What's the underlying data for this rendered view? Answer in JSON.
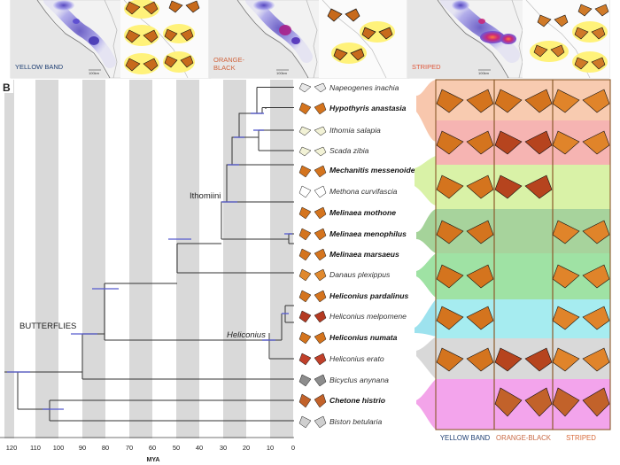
{
  "panel_top": {
    "maps": [
      {
        "label": "YELLOW BAND",
        "label_color": "#1f3f73",
        "scale": "100km"
      },
      {
        "label": "ORANGE-BLACK",
        "label_color": "#d0633c",
        "scale": "100km"
      },
      {
        "label": "STRIPED",
        "label_color": "#e0573a",
        "scale": "100km"
      }
    ]
  },
  "panel_b": {
    "letter": "B",
    "axis_ticks": [
      "120",
      "110",
      "100",
      "90",
      "80",
      "70",
      "60",
      "50",
      "40",
      "30",
      "20",
      "10",
      "0"
    ],
    "axis_title": "MYA",
    "clade_labels": {
      "butterflies": "BUTTERFLIES",
      "ithomiini": "Ithomiini",
      "heliconius": "Heliconius"
    },
    "species": [
      {
        "name": "Napeogenes inachia",
        "bold": false
      },
      {
        "name": "Hypothyris anastasia",
        "bold": true
      },
      {
        "name": "Ithomia salapia",
        "bold": false
      },
      {
        "name": "Scada zibia",
        "bold": false
      },
      {
        "name": "Mechanitis messenoides",
        "bold": true
      },
      {
        "name": "Methona curvifascia",
        "bold": false
      },
      {
        "name": "Melinaea mothone",
        "bold": true
      },
      {
        "name": "Melinaea menophilus",
        "bold": true
      },
      {
        "name": "Melinaea marsaeus",
        "bold": true
      },
      {
        "name": "Danaus plexippus",
        "bold": false
      },
      {
        "name": "Heliconius pardalinus",
        "bold": true
      },
      {
        "name": "Heliconius melpomene",
        "bold": false
      },
      {
        "name": "Heliconius numata",
        "bold": true
      },
      {
        "name": "Heliconius erato",
        "bold": false
      },
      {
        "name": "Bicyclus anynana",
        "bold": false
      },
      {
        "name": "Chetone histrio",
        "bold": true
      },
      {
        "name": "Biston betularia",
        "bold": false
      }
    ],
    "morph_columns": [
      "YELLOW BAND",
      "ORANGE-BLACK",
      "STRIPED"
    ],
    "colors": {
      "frame": "#8b5a2b",
      "node_bar": "#5a5fd0",
      "tree": "#333333"
    }
  }
}
